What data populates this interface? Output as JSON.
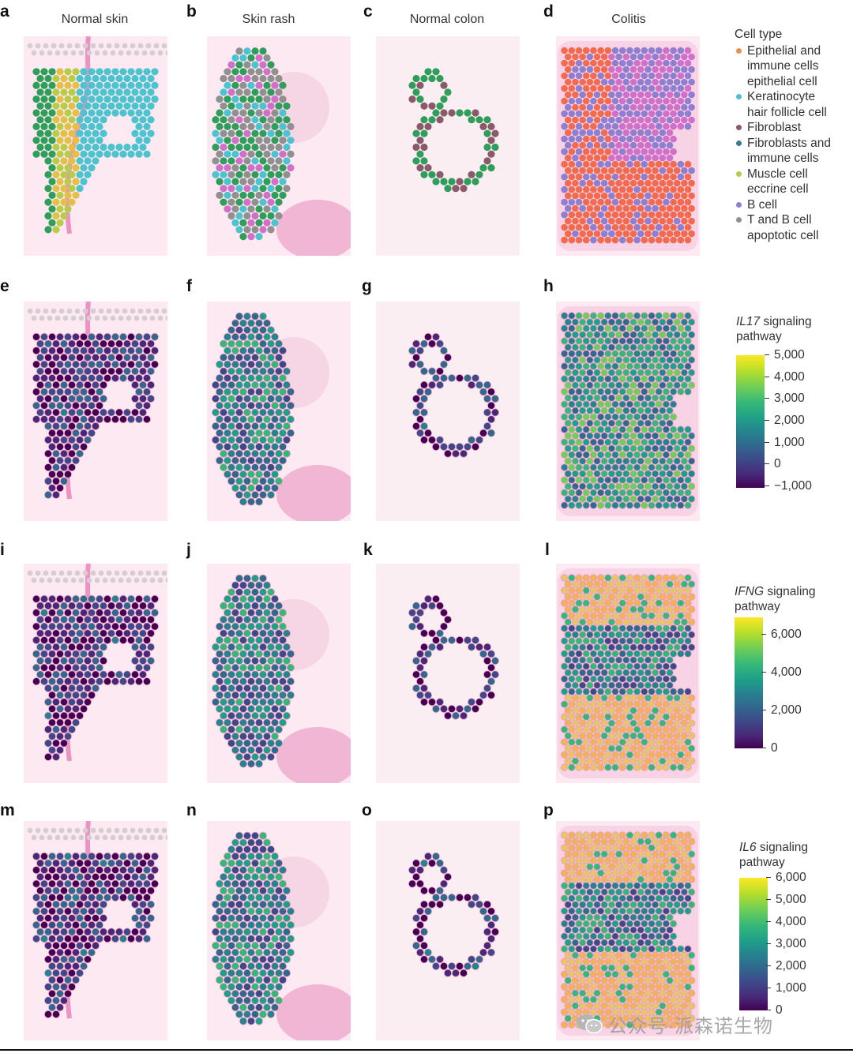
{
  "columns": [
    {
      "letter": "a",
      "title": "Normal skin"
    },
    {
      "letter": "b",
      "title": "Skin rash"
    },
    {
      "letter": "c",
      "title": "Normal colon"
    },
    {
      "letter": "d",
      "title": "Colitis"
    }
  ],
  "row_letters": [
    [
      "a",
      "b",
      "c",
      "d"
    ],
    [
      "e",
      "f",
      "g",
      "h"
    ],
    [
      "i",
      "j",
      "k",
      "l"
    ],
    [
      "m",
      "n",
      "o",
      "p"
    ]
  ],
  "legend": {
    "title": "Cell type",
    "items": [
      {
        "lines": [
          "Epithelial and",
          "immune cells",
          "epithelial cell"
        ],
        "color": "#e8934a"
      },
      {
        "lines": [
          "Keratinocyte",
          "hair follicle cell"
        ],
        "color": "#4cc3cf"
      },
      {
        "lines": [
          "Fibroblast"
        ],
        "color": "#8a5a6a"
      },
      {
        "lines": [
          "Fibroblasts and",
          "immune cells"
        ],
        "color": "#3a7a90"
      },
      {
        "lines": [
          "Muscle cell",
          "eccrine cell"
        ],
        "color": "#b8cc4a"
      },
      {
        "lines": [
          "B cell"
        ],
        "color": "#8f7fd0"
      },
      {
        "lines": [
          "T and B cell",
          "apoptotic cell"
        ],
        "color": "#909090"
      }
    ]
  },
  "colorbars": [
    {
      "gene": "IL17",
      "title_rest": " signaling",
      "title_line2": "pathway",
      "ticks": [
        "5,000",
        "4,000",
        "3,000",
        "2,000",
        "1,000",
        "0",
        "−1,000"
      ]
    },
    {
      "gene": "IFNG",
      "title_rest": " signaling",
      "title_line2": "pathway",
      "ticks": [
        "6,000",
        "4,000",
        "2,000",
        "0"
      ]
    },
    {
      "gene": "IL6",
      "title_rest": " signaling",
      "title_line2": "pathway",
      "ticks": [
        "6,000",
        "5,000",
        "4,000",
        "3,000",
        "2,000",
        "1,000",
        "0"
      ]
    }
  ],
  "watermark": "公众号·派森诺生物",
  "colors": {
    "viridis_low": "#440154",
    "viridis_high": "#fde725",
    "tissue_pink": "#f3c7dc",
    "tissue_deep": "#e05aa5"
  }
}
